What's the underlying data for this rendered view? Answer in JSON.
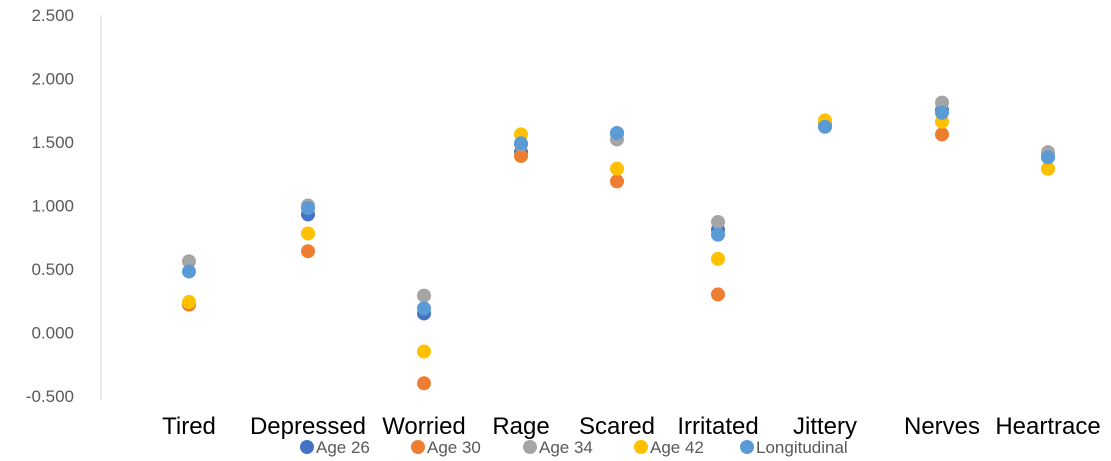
{
  "chart_data": {
    "type": "scatter",
    "categories": [
      "Tired",
      "Depressed",
      "Worried",
      "Rage",
      "Scared",
      "Irritated",
      "Jittery",
      "Nerves",
      "Heartrace"
    ],
    "ylim": [
      -0.5,
      2.5
    ],
    "yticks": [
      "2.500",
      "2.000",
      "1.500",
      "1.000",
      "0.500",
      "0.000",
      "-0.500"
    ],
    "grid": false,
    "legend_position": "bottom",
    "series": [
      {
        "name": "Age 26",
        "color": "#4472C4",
        "values": [
          0.22,
          0.93,
          0.15,
          1.42,
          1.57,
          0.81,
          1.63,
          1.75,
          1.38
        ]
      },
      {
        "name": "Age 30",
        "color": "#ED7D31",
        "values": [
          0.22,
          0.64,
          -0.4,
          1.39,
          1.19,
          0.3,
          1.63,
          1.56,
          1.29
        ]
      },
      {
        "name": "Age 34",
        "color": "#A5A5A5",
        "values": [
          0.56,
          1.0,
          0.29,
          1.48,
          1.52,
          0.87,
          1.64,
          1.81,
          1.42
        ]
      },
      {
        "name": "Age 42",
        "color": "#FFC000",
        "values": [
          0.24,
          0.78,
          -0.15,
          1.56,
          1.29,
          0.58,
          1.67,
          1.66,
          1.29
        ]
      },
      {
        "name": "Longitudinal",
        "color": "#5B9BD5",
        "values": [
          0.48,
          0.98,
          0.19,
          1.49,
          1.57,
          0.77,
          1.62,
          1.73,
          1.38
        ]
      }
    ]
  }
}
